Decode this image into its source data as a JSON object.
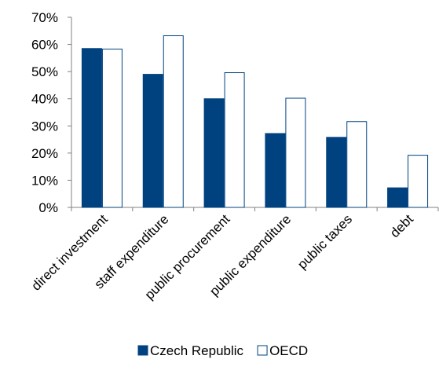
{
  "chart_data": {
    "type": "bar",
    "categories": [
      "direct investment",
      "staff expenditure",
      "public procurement",
      "public expenditure",
      "public taxes",
      "debt"
    ],
    "series": [
      {
        "name": "Czech Republic",
        "values": [
          0.585,
          0.49,
          0.4,
          0.272,
          0.258,
          0.072
        ],
        "color": "#00427f"
      },
      {
        "name": "OECD",
        "values": [
          0.583,
          0.632,
          0.496,
          0.402,
          0.316,
          0.192
        ],
        "color": "#ffffff",
        "stroke": "#00427f"
      }
    ],
    "y_ticks": [
      "0%",
      "10%",
      "20%",
      "30%",
      "40%",
      "50%",
      "60%",
      "70%"
    ],
    "ylim": [
      0,
      0.7
    ],
    "grid": false,
    "legend_position": "bottom"
  }
}
